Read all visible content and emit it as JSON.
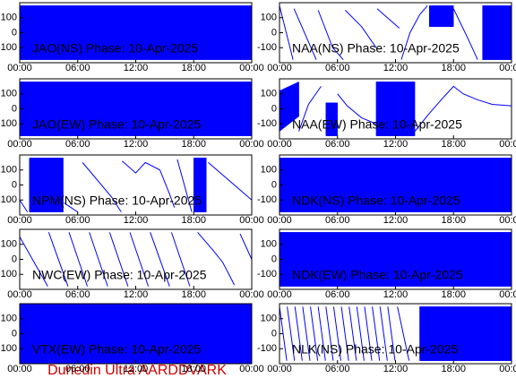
{
  "chart_data": [
    {
      "type": "line",
      "title": "JAO(NS) Phase: 10-Apr-2025",
      "xlim": [
        0,
        24
      ],
      "ylim": [
        -200,
        200
      ],
      "yticks": [
        -100,
        0,
        100
      ],
      "xticks": [
        {
          "value": 0,
          "label": "00:00"
        },
        {
          "value": 6,
          "label": "06:00"
        },
        {
          "value": 12,
          "label": "12:00"
        },
        {
          "value": 18,
          "label": "18:00"
        },
        {
          "value": 24,
          "label": "00:00"
        }
      ],
      "series": [],
      "ranges": [
        {
          "color": "#0000ff",
          "x": [
            0,
            24
          ],
          "low": [
            -180,
            -180
          ],
          "high": [
            180,
            180
          ]
        }
      ]
    },
    {
      "type": "line",
      "title": "JAO(EW) Phase: 10-Apr-2025",
      "xlim": [
        0,
        24
      ],
      "ylim": [
        -200,
        200
      ],
      "yticks": [
        -100,
        0,
        100
      ],
      "xticks": [
        {
          "value": 0,
          "label": "00:00"
        },
        {
          "value": 6,
          "label": "06:00"
        },
        {
          "value": 12,
          "label": "12:00"
        },
        {
          "value": 18,
          "label": "18:00"
        },
        {
          "value": 24,
          "label": "00:00"
        }
      ],
      "series": [],
      "ranges": [
        {
          "color": "#0000ff",
          "x": [
            0,
            24
          ],
          "low": [
            -180,
            -180
          ],
          "high": [
            180,
            180
          ]
        }
      ]
    },
    {
      "type": "line",
      "title": "NPM(NS) Phase: 10-Apr-2025",
      "xlim": [
        0,
        24
      ],
      "ylim": [
        -200,
        200
      ],
      "yticks": [
        -100,
        0,
        100
      ],
      "xticks": [
        {
          "value": 0,
          "label": "00:00"
        },
        {
          "value": 6,
          "label": "06:00"
        },
        {
          "value": 12,
          "label": "12:00"
        },
        {
          "value": 18,
          "label": "18:00"
        },
        {
          "value": 24,
          "label": "00:00"
        }
      ],
      "series": [
        {
          "color": "#0000ff",
          "x": [
            0,
            0.8,
            0.9,
            4.6,
            6,
            6.2,
            6.5,
            9.5,
            10.5,
            10.55,
            10.6,
            12,
            13,
            14.5,
            15.5,
            16,
            16.1,
            16.3,
            17.8,
            17.9,
            19.5,
            24
          ],
          "values": [
            -100,
            -180,
            null,
            -120,
            -180,
            null,
            150,
            -80,
            -180,
            null,
            160,
            80,
            150,
            100,
            -60,
            -150,
            null,
            170,
            -180,
            null,
            150,
            -100
          ]
        }
      ],
      "ranges": [
        {
          "color": "#0000ff",
          "x": [
            1,
            4.5
          ],
          "low": [
            -180,
            -180
          ],
          "high": [
            180,
            180
          ]
        },
        {
          "color": "#0000ff",
          "x": [
            18,
            19.3
          ],
          "low": [
            -180,
            -180
          ],
          "high": [
            180,
            180
          ]
        }
      ]
    },
    {
      "type": "line",
      "title": "NWC(EW) Phase: 10-Apr-2025",
      "xlim": [
        0,
        24
      ],
      "ylim": [
        -200,
        200
      ],
      "yticks": [
        -100,
        0,
        100
      ],
      "xticks": [
        {
          "value": 0,
          "label": "00:00"
        },
        {
          "value": 6,
          "label": "06:00"
        },
        {
          "value": 12,
          "label": "12:00"
        },
        {
          "value": 18,
          "label": "18:00"
        },
        {
          "value": 24,
          "label": "00:00"
        }
      ],
      "series": [
        {
          "color": "#0000ff",
          "x": [
            0,
            2.9,
            2.95,
            3,
            5,
            5.05,
            5.1,
            7,
            7.1,
            7.2,
            9.1,
            9.2,
            9.3,
            11.2,
            11.3,
            11.4,
            13.3,
            13.4,
            13.5,
            15.5,
            15.6,
            15.7,
            17.6,
            18,
            18.4,
            20,
            21,
            22.2,
            22.5,
            22.8,
            24
          ],
          "values": [
            150,
            -180,
            null,
            180,
            -180,
            null,
            180,
            -180,
            null,
            180,
            -180,
            null,
            180,
            -180,
            null,
            180,
            -180,
            null,
            180,
            -180,
            null,
            180,
            -180,
            null,
            180,
            60,
            -20,
            -170,
            null,
            170,
            0
          ]
        }
      ],
      "ranges": []
    },
    {
      "type": "line",
      "title": "VTX(EW) Phase: 10-Apr-2025",
      "xlim": [
        0,
        24
      ],
      "ylim": [
        -200,
        200
      ],
      "yticks": [
        -100,
        0,
        100
      ],
      "xticks": [
        {
          "value": 0,
          "label": "00:00"
        },
        {
          "value": 6,
          "label": "06:00"
        },
        {
          "value": 12,
          "label": "12:00"
        },
        {
          "value": 18,
          "label": "18:00"
        },
        {
          "value": 24,
          "label": "00:00"
        }
      ],
      "series": [],
      "ranges": [
        {
          "color": "#0000ff",
          "x": [
            0,
            24
          ],
          "low": [
            -200,
            -200
          ],
          "high": [
            200,
            200
          ]
        }
      ]
    },
    {
      "type": "line",
      "title": "NAA(NS) Phase: 10-Apr-2025",
      "xlim": [
        0,
        24
      ],
      "ylim": [
        -200,
        200
      ],
      "yticks": [
        -100,
        0,
        100
      ],
      "xticks": [
        {
          "value": 0,
          "label": "00:00"
        },
        {
          "value": 6,
          "label": "06:00"
        },
        {
          "value": 12,
          "label": "12:00"
        },
        {
          "value": 18,
          "label": "18:00"
        },
        {
          "value": 24,
          "label": "00:00"
        }
      ],
      "series": [
        {
          "color": "#0000ff",
          "x": [
            0,
            1.4,
            1.45,
            1.5,
            3.8,
            3.9,
            4,
            5.5,
            6.6,
            6.7,
            6.8,
            8.5,
            10,
            10.05,
            10.1,
            12.4,
            12.5,
            12.6,
            13.5,
            14.5,
            15.3,
            16,
            18,
            19.5,
            20.5
          ],
          "values": [
            180,
            -180,
            null,
            160,
            -180,
            null,
            150,
            -100,
            -180,
            null,
            150,
            40,
            -100,
            null,
            160,
            30,
            null,
            -180,
            0,
            120,
            180,
            null,
            160,
            -40,
            -180
          ]
        }
      ],
      "ranges": [
        {
          "color": "#0000ff",
          "x": [
            15.5,
            18
          ],
          "low": [
            40,
            40
          ],
          "high": [
            180,
            180
          ]
        },
        {
          "color": "#0000ff",
          "x": [
            21,
            24
          ],
          "low": [
            -180,
            -180
          ],
          "high": [
            180,
            180
          ]
        }
      ]
    },
    {
      "type": "line",
      "title": "NAA(EW) Phase: 10-Apr-2025",
      "xlim": [
        0,
        24
      ],
      "ylim": [
        -200,
        200
      ],
      "yticks": [
        -100,
        0,
        100
      ],
      "xticks": [
        {
          "value": 0,
          "label": "00:00"
        },
        {
          "value": 6,
          "label": "06:00"
        },
        {
          "value": 12,
          "label": "12:00"
        },
        {
          "value": 18,
          "label": "18:00"
        },
        {
          "value": 24,
          "label": "00:00"
        }
      ],
      "series": [
        {
          "color": "#0000ff",
          "x": [
            2,
            3,
            4.3,
            5,
            6,
            7,
            8.5,
            10,
            12,
            14,
            15.5,
            17,
            18,
            19,
            20.5,
            22,
            24
          ],
          "values": [
            -150,
            30,
            150,
            null,
            100,
            20,
            -60,
            -100,
            null,
            -150,
            -30,
            80,
            150,
            100,
            60,
            30,
            20
          ]
        }
      ],
      "ranges": [
        {
          "color": "#0000ff",
          "x": [
            0,
            2
          ],
          "low": [
            -150,
            -50
          ],
          "high": [
            120,
            180
          ]
        },
        {
          "color": "#0000ff",
          "x": [
            4.8,
            6
          ],
          "low": [
            -180,
            -180
          ],
          "high": [
            40,
            40
          ]
        },
        {
          "color": "#0000ff",
          "x": [
            10,
            14
          ],
          "low": [
            -180,
            -180
          ],
          "high": [
            180,
            180
          ]
        }
      ]
    },
    {
      "type": "line",
      "title": "NDK(NS) Phase: 10-Apr-2025",
      "xlim": [
        0,
        24
      ],
      "ylim": [
        -200,
        200
      ],
      "yticks": [
        -100,
        0,
        100
      ],
      "xticks": [
        {
          "value": 0,
          "label": "00:00"
        },
        {
          "value": 6,
          "label": "06:00"
        },
        {
          "value": 12,
          "label": "12:00"
        },
        {
          "value": 18,
          "label": "18:00"
        },
        {
          "value": 24,
          "label": "00:00"
        }
      ],
      "series": [],
      "ranges": [
        {
          "color": "#0000ff",
          "x": [
            0,
            24
          ],
          "low": [
            -180,
            -180
          ],
          "high": [
            180,
            180
          ]
        }
      ]
    },
    {
      "type": "line",
      "title": "NDK(EW) Phase: 10-Apr-2025",
      "xlim": [
        0,
        24
      ],
      "ylim": [
        -200,
        200
      ],
      "yticks": [
        -100,
        0,
        100
      ],
      "xticks": [
        {
          "value": 0,
          "label": "00:00"
        },
        {
          "value": 6,
          "label": "06:00"
        },
        {
          "value": 12,
          "label": "12:00"
        },
        {
          "value": 18,
          "label": "18:00"
        },
        {
          "value": 24,
          "label": "00:00"
        }
      ],
      "series": [],
      "ranges": [
        {
          "color": "#0000ff",
          "x": [
            0,
            24
          ],
          "low": [
            -180,
            -180
          ],
          "high": [
            180,
            180
          ]
        }
      ]
    },
    {
      "type": "line",
      "title": "NLK(NS) Phase: 10-Apr-2025",
      "xlim": [
        0,
        24
      ],
      "ylim": [
        -200,
        200
      ],
      "yticks": [
        -100,
        0,
        100
      ],
      "xticks": [
        {
          "value": 0,
          "label": "00:00"
        },
        {
          "value": 6,
          "label": "06:00"
        },
        {
          "value": 12,
          "label": "12:00"
        },
        {
          "value": 18,
          "label": "18:00"
        },
        {
          "value": 24,
          "label": "00:00"
        }
      ],
      "series": [
        {
          "color": "#0000ff",
          "x": [
            0,
            0.75,
            0.77,
            0.8,
            1.55,
            1.57,
            1.6,
            2.35,
            2.37,
            2.4,
            3.15,
            3.17,
            3.2,
            3.95,
            3.97,
            4,
            4.75,
            4.77,
            4.8,
            5.55,
            5.57,
            5.6,
            6.35,
            6.37,
            6.4,
            7.15,
            7.17,
            7.2,
            7.95,
            7.97,
            8,
            8.75,
            8.77,
            8.8,
            9.55,
            9.57,
            9.6,
            10.35,
            10.37,
            10.4,
            11.15,
            11.17,
            11.2,
            11.95,
            11.97,
            12.2,
            13.4
          ],
          "values": [
            180,
            -180,
            null,
            180,
            -180,
            null,
            180,
            -180,
            null,
            180,
            -180,
            null,
            180,
            -180,
            null,
            180,
            -180,
            null,
            180,
            -180,
            null,
            180,
            -180,
            null,
            180,
            -180,
            null,
            180,
            -180,
            null,
            180,
            -180,
            null,
            180,
            -180,
            null,
            180,
            -180,
            null,
            180,
            -180,
            null,
            180,
            -180,
            null,
            180,
            -180
          ]
        }
      ],
      "ranges": [
        {
          "color": "#0000ff",
          "x": [
            14.5,
            24
          ],
          "low": [
            -180,
            -180
          ],
          "high": [
            180,
            180
          ]
        }
      ]
    }
  ],
  "footer": "Dunedin Ultra AARDDVARK"
}
